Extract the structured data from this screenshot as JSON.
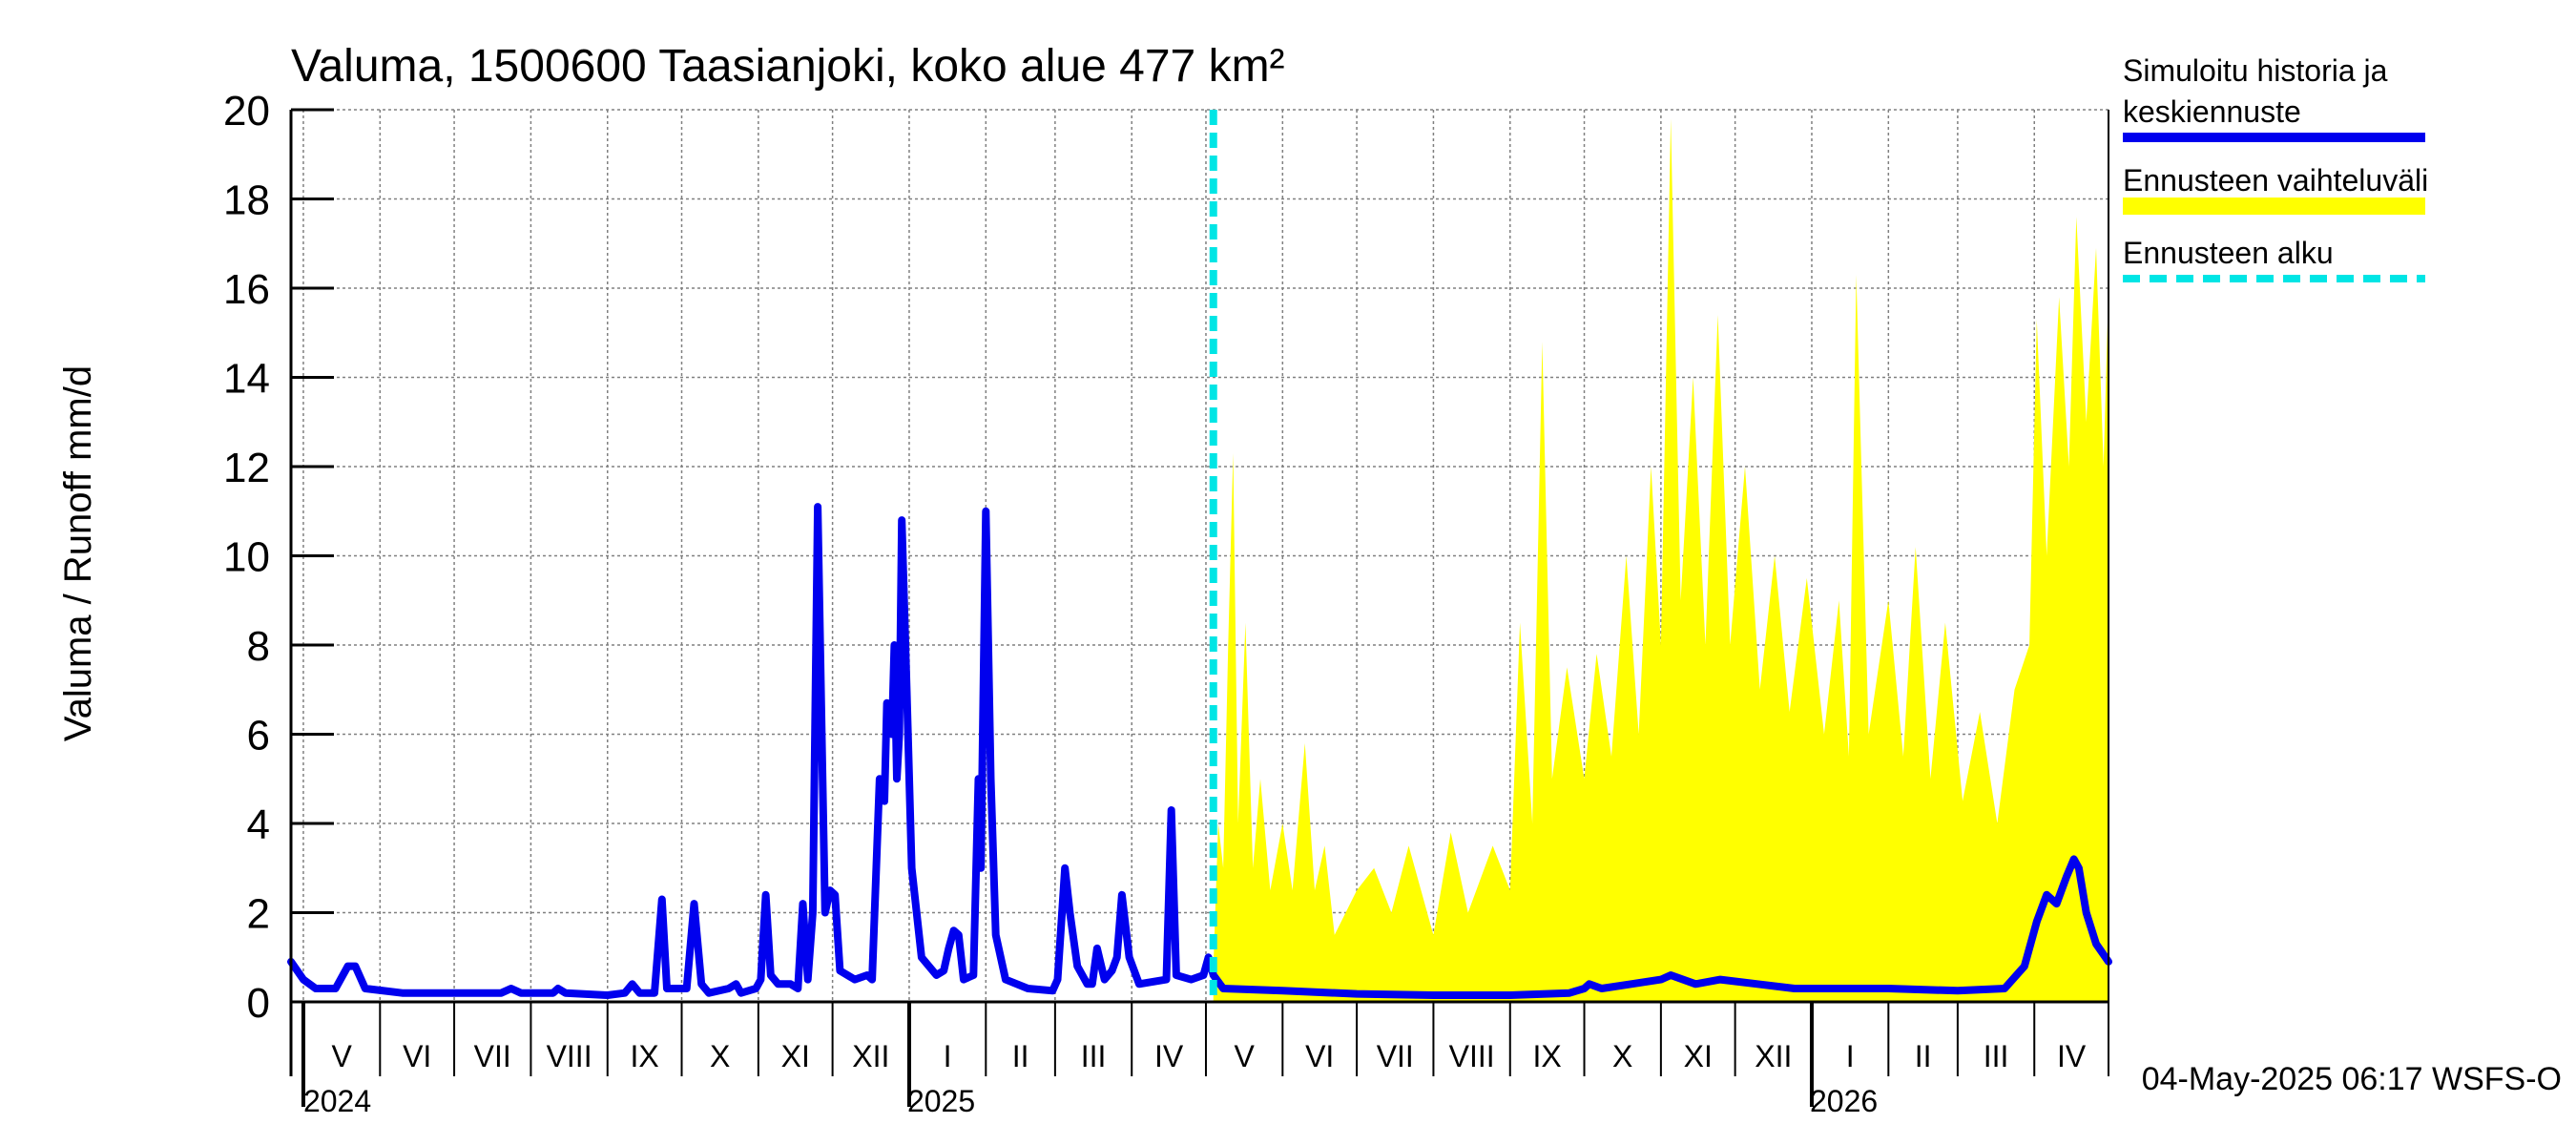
{
  "chart_data": {
    "type": "line",
    "title": "Valuma, 1500600 Taasianjoki, koko alue 477 km²",
    "ylabel": "Valuma / Runoff    mm/d",
    "ylim": [
      0,
      20
    ],
    "yticks": [
      0,
      2,
      4,
      6,
      8,
      10,
      12,
      14,
      16,
      18,
      20
    ],
    "grid": true,
    "x_start": "2024-04-26",
    "x_end": "2026-05-01",
    "forecast_start": "2025-05-04",
    "timestamp": "04-May-2025 06:17 WSFS-O",
    "legend_position": "top-right",
    "months": [
      {
        "label": "V",
        "start": "2024-05-01"
      },
      {
        "label": "VI",
        "start": "2024-06-01"
      },
      {
        "label": "VII",
        "start": "2024-07-01"
      },
      {
        "label": "VIII",
        "start": "2024-08-01"
      },
      {
        "label": "IX",
        "start": "2024-09-01"
      },
      {
        "label": "X",
        "start": "2024-10-01"
      },
      {
        "label": "XI",
        "start": "2024-11-01"
      },
      {
        "label": "XII",
        "start": "2024-12-01"
      },
      {
        "label": "I",
        "start": "2025-01-01"
      },
      {
        "label": "II",
        "start": "2025-02-01"
      },
      {
        "label": "III",
        "start": "2025-03-01"
      },
      {
        "label": "IV",
        "start": "2025-04-01"
      },
      {
        "label": "V",
        "start": "2025-05-01"
      },
      {
        "label": "VI",
        "start": "2025-06-01"
      },
      {
        "label": "VII",
        "start": "2025-07-01"
      },
      {
        "label": "VIII",
        "start": "2025-08-01"
      },
      {
        "label": "IX",
        "start": "2025-09-01"
      },
      {
        "label": "X",
        "start": "2025-10-01"
      },
      {
        "label": "XI",
        "start": "2025-11-01"
      },
      {
        "label": "XII",
        "start": "2025-12-01"
      },
      {
        "label": "I",
        "start": "2026-01-01"
      },
      {
        "label": "II",
        "start": "2026-02-01"
      },
      {
        "label": "III",
        "start": "2026-03-01"
      },
      {
        "label": "IV",
        "start": "2026-04-01"
      }
    ],
    "years": [
      {
        "label": "2024",
        "date": "2024-05-01"
      },
      {
        "label": "2025",
        "date": "2025-01-01"
      },
      {
        "label": "2026",
        "date": "2026-01-01"
      }
    ],
    "series": [
      {
        "name": "Simuloitu historia ja keskiennuste",
        "color": "#0000ee",
        "points": [
          [
            "2024-04-26",
            0.9
          ],
          [
            "2024-05-01",
            0.5
          ],
          [
            "2024-05-06",
            0.3
          ],
          [
            "2024-05-14",
            0.3
          ],
          [
            "2024-05-19",
            0.8
          ],
          [
            "2024-05-22",
            0.8
          ],
          [
            "2024-05-26",
            0.3
          ],
          [
            "2024-06-10",
            0.2
          ],
          [
            "2024-07-01",
            0.2
          ],
          [
            "2024-07-20",
            0.2
          ],
          [
            "2024-07-24",
            0.3
          ],
          [
            "2024-07-28",
            0.2
          ],
          [
            "2024-08-10",
            0.2
          ],
          [
            "2024-08-12",
            0.3
          ],
          [
            "2024-08-15",
            0.2
          ],
          [
            "2024-09-01",
            0.15
          ],
          [
            "2024-09-08",
            0.2
          ],
          [
            "2024-09-11",
            0.4
          ],
          [
            "2024-09-14",
            0.2
          ],
          [
            "2024-09-20",
            0.2
          ],
          [
            "2024-09-23",
            2.3
          ],
          [
            "2024-09-25",
            0.3
          ],
          [
            "2024-10-03",
            0.3
          ],
          [
            "2024-10-06",
            2.2
          ],
          [
            "2024-10-09",
            0.4
          ],
          [
            "2024-10-12",
            0.2
          ],
          [
            "2024-10-20",
            0.3
          ],
          [
            "2024-10-23",
            0.4
          ],
          [
            "2024-10-25",
            0.2
          ],
          [
            "2024-10-31",
            0.3
          ],
          [
            "2024-11-02",
            0.5
          ],
          [
            "2024-11-04",
            2.4
          ],
          [
            "2024-11-06",
            0.6
          ],
          [
            "2024-11-09",
            0.4
          ],
          [
            "2024-11-14",
            0.4
          ],
          [
            "2024-11-17",
            0.3
          ],
          [
            "2024-11-19",
            2.2
          ],
          [
            "2024-11-21",
            0.5
          ],
          [
            "2024-11-23",
            2.0
          ],
          [
            "2024-11-25",
            11.1
          ],
          [
            "2024-11-27",
            5.0
          ],
          [
            "2024-11-28",
            2.0
          ],
          [
            "2024-11-30",
            2.5
          ],
          [
            "2024-12-02",
            2.4
          ],
          [
            "2024-12-04",
            0.7
          ],
          [
            "2024-12-10",
            0.5
          ],
          [
            "2024-12-15",
            0.6
          ],
          [
            "2024-12-17",
            0.5
          ],
          [
            "2024-12-20",
            5.0
          ],
          [
            "2024-12-22",
            4.5
          ],
          [
            "2024-12-23",
            6.7
          ],
          [
            "2024-12-25",
            6.0
          ],
          [
            "2024-12-26",
            8.0
          ],
          [
            "2024-12-27",
            5.0
          ],
          [
            "2024-12-28",
            6.0
          ],
          [
            "2024-12-29",
            10.8
          ],
          [
            "2024-12-31",
            7.0
          ],
          [
            "2025-01-02",
            3.0
          ],
          [
            "2025-01-06",
            1.0
          ],
          [
            "2025-01-12",
            0.6
          ],
          [
            "2025-01-15",
            0.7
          ],
          [
            "2025-01-17",
            1.2
          ],
          [
            "2025-01-19",
            1.6
          ],
          [
            "2025-01-21",
            1.5
          ],
          [
            "2025-01-23",
            0.5
          ],
          [
            "2025-01-27",
            0.6
          ],
          [
            "2025-01-29",
            5.0
          ],
          [
            "2025-01-30",
            3.0
          ],
          [
            "2025-02-01",
            11.0
          ],
          [
            "2025-02-03",
            5.0
          ],
          [
            "2025-02-05",
            1.5
          ],
          [
            "2025-02-09",
            0.5
          ],
          [
            "2025-02-18",
            0.3
          ],
          [
            "2025-02-28",
            0.25
          ],
          [
            "2025-03-02",
            0.5
          ],
          [
            "2025-03-05",
            3.0
          ],
          [
            "2025-03-07",
            2.0
          ],
          [
            "2025-03-10",
            0.8
          ],
          [
            "2025-03-14",
            0.4
          ],
          [
            "2025-03-16",
            0.4
          ],
          [
            "2025-03-18",
            1.2
          ],
          [
            "2025-03-21",
            0.5
          ],
          [
            "2025-03-24",
            0.7
          ],
          [
            "2025-03-26",
            1.0
          ],
          [
            "2025-03-28",
            2.4
          ],
          [
            "2025-03-31",
            1.0
          ],
          [
            "2025-04-04",
            0.4
          ],
          [
            "2025-04-15",
            0.5
          ],
          [
            "2025-04-17",
            4.3
          ],
          [
            "2025-04-19",
            0.6
          ],
          [
            "2025-04-25",
            0.5
          ],
          [
            "2025-04-30",
            0.6
          ],
          [
            "2025-05-02",
            1.0
          ],
          [
            "2025-05-04",
            0.6
          ],
          [
            "2025-05-08",
            0.3
          ],
          [
            "2025-06-01",
            0.25
          ],
          [
            "2025-07-01",
            0.18
          ],
          [
            "2025-08-01",
            0.15
          ],
          [
            "2025-09-01",
            0.15
          ],
          [
            "2025-09-25",
            0.2
          ],
          [
            "2025-10-01",
            0.3
          ],
          [
            "2025-10-03",
            0.4
          ],
          [
            "2025-10-08",
            0.3
          ],
          [
            "2025-10-20",
            0.4
          ],
          [
            "2025-11-01",
            0.5
          ],
          [
            "2025-11-05",
            0.6
          ],
          [
            "2025-11-15",
            0.4
          ],
          [
            "2025-11-25",
            0.5
          ],
          [
            "2025-12-10",
            0.4
          ],
          [
            "2025-12-25",
            0.3
          ],
          [
            "2026-01-10",
            0.3
          ],
          [
            "2026-02-01",
            0.3
          ],
          [
            "2026-03-01",
            0.25
          ],
          [
            "2026-03-20",
            0.3
          ],
          [
            "2026-03-28",
            0.8
          ],
          [
            "2026-04-02",
            1.8
          ],
          [
            "2026-04-06",
            2.4
          ],
          [
            "2026-04-10",
            2.2
          ],
          [
            "2026-04-14",
            2.8
          ],
          [
            "2026-04-17",
            3.2
          ],
          [
            "2026-04-19",
            3.0
          ],
          [
            "2026-04-22",
            2.0
          ],
          [
            "2026-04-26",
            1.3
          ],
          [
            "2026-05-01",
            0.9
          ]
        ]
      },
      {
        "name": "Ennusteen vaihteluväli",
        "color": "#ffff00",
        "points": [
          [
            "2025-05-04",
            0.8
          ],
          [
            "2025-05-06",
            4.0
          ],
          [
            "2025-05-08",
            3.0
          ],
          [
            "2025-05-10",
            8.0
          ],
          [
            "2025-05-12",
            12.3
          ],
          [
            "2025-05-14",
            4.0
          ],
          [
            "2025-05-17",
            8.5
          ],
          [
            "2025-05-20",
            3.0
          ],
          [
            "2025-05-23",
            5.0
          ],
          [
            "2025-05-27",
            2.5
          ],
          [
            "2025-06-01",
            4.0
          ],
          [
            "2025-06-05",
            2.5
          ],
          [
            "2025-06-10",
            5.8
          ],
          [
            "2025-06-14",
            2.5
          ],
          [
            "2025-06-18",
            3.5
          ],
          [
            "2025-06-22",
            1.5
          ],
          [
            "2025-07-01",
            2.5
          ],
          [
            "2025-07-08",
            3.0
          ],
          [
            "2025-07-15",
            2.0
          ],
          [
            "2025-07-22",
            3.5
          ],
          [
            "2025-08-01",
            1.5
          ],
          [
            "2025-08-08",
            3.8
          ],
          [
            "2025-08-15",
            2.0
          ],
          [
            "2025-08-25",
            3.5
          ],
          [
            "2025-09-01",
            2.5
          ],
          [
            "2025-09-05",
            8.5
          ],
          [
            "2025-09-10",
            4.0
          ],
          [
            "2025-09-14",
            14.8
          ],
          [
            "2025-09-18",
            5.0
          ],
          [
            "2025-09-24",
            7.5
          ],
          [
            "2025-10-01",
            5.0
          ],
          [
            "2025-10-06",
            7.8
          ],
          [
            "2025-10-12",
            5.5
          ],
          [
            "2025-10-18",
            10.0
          ],
          [
            "2025-10-23",
            6.0
          ],
          [
            "2025-10-28",
            12.0
          ],
          [
            "2025-11-01",
            8.0
          ],
          [
            "2025-11-05",
            19.8
          ],
          [
            "2025-11-09",
            9.0
          ],
          [
            "2025-11-14",
            14.0
          ],
          [
            "2025-11-19",
            8.0
          ],
          [
            "2025-11-24",
            15.4
          ],
          [
            "2025-11-29",
            8.0
          ],
          [
            "2025-12-05",
            12.0
          ],
          [
            "2025-12-11",
            7.0
          ],
          [
            "2025-12-17",
            10.0
          ],
          [
            "2025-12-23",
            6.5
          ],
          [
            "2025-12-30",
            9.5
          ],
          [
            "2026-01-06",
            6.0
          ],
          [
            "2026-01-12",
            9.0
          ],
          [
            "2026-01-16",
            5.5
          ],
          [
            "2026-01-19",
            16.3
          ],
          [
            "2026-01-24",
            6.0
          ],
          [
            "2026-02-01",
            9.0
          ],
          [
            "2026-02-07",
            5.5
          ],
          [
            "2026-02-12",
            10.2
          ],
          [
            "2026-02-18",
            5.0
          ],
          [
            "2026-02-24",
            8.5
          ],
          [
            "2026-03-03",
            4.5
          ],
          [
            "2026-03-10",
            6.5
          ],
          [
            "2026-03-17",
            4.0
          ],
          [
            "2026-03-24",
            7.0
          ],
          [
            "2026-03-30",
            8.0
          ],
          [
            "2026-04-02",
            15.3
          ],
          [
            "2026-04-06",
            10.0
          ],
          [
            "2026-04-11",
            15.8
          ],
          [
            "2026-04-15",
            12.0
          ],
          [
            "2026-04-18",
            17.6
          ],
          [
            "2026-04-22",
            13.0
          ],
          [
            "2026-04-26",
            16.9
          ],
          [
            "2026-04-29",
            12.0
          ],
          [
            "2026-05-01",
            16.0
          ]
        ]
      },
      {
        "name": "Ennusteen alku",
        "color": "#00e5e5"
      }
    ]
  }
}
